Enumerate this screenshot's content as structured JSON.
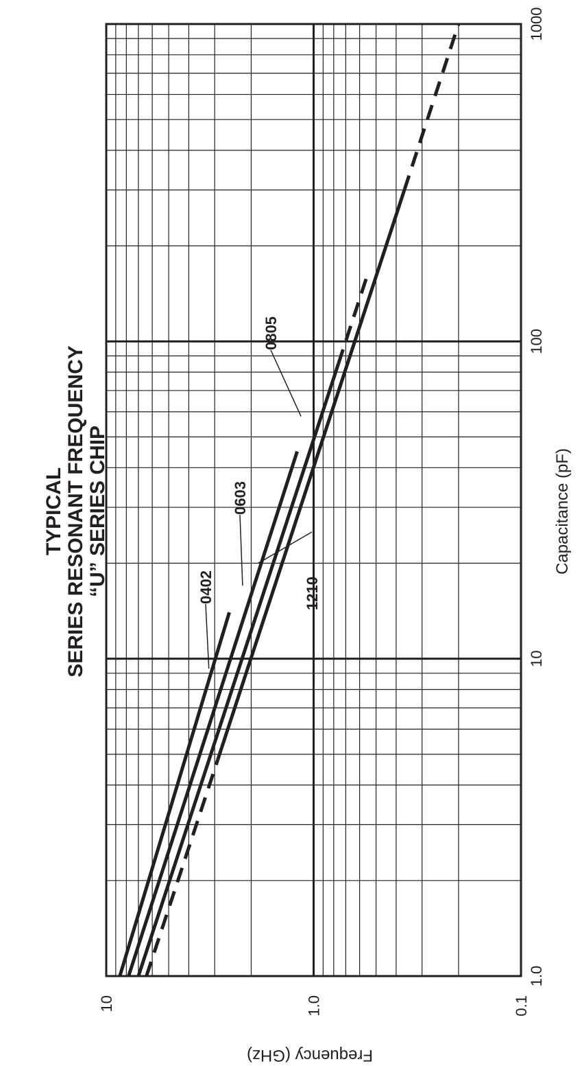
{
  "chart_data": {
    "type": "line",
    "title_lines": [
      "TYPICAL",
      "SERIES RESONANT FREQUENCY",
      "“U” SERIES CHIP"
    ],
    "xlabel": "Capacitance (pF)",
    "ylabel": "Frequency (GHz)",
    "x_scale": "log",
    "y_scale": "log",
    "xlim": [
      1,
      1000
    ],
    "ylim": [
      0.1,
      10
    ],
    "x_ticks": [
      "1.0",
      "10",
      "100",
      "1000"
    ],
    "y_ticks": [
      "10",
      "1.0",
      "0.1"
    ],
    "grid": true,
    "rotation": "chart printed rotated 90 degrees counter-clockwise",
    "series": [
      {
        "name": "0402",
        "solid": [
          [
            1.0,
            8.6
          ],
          [
            14.0,
            2.55
          ]
        ],
        "dashed": []
      },
      {
        "name": "0603",
        "solid": [
          [
            1.0,
            7.8
          ],
          [
            45.0,
            1.2
          ]
        ],
        "dashed": []
      },
      {
        "name": "0805",
        "solid": [
          [
            1.0,
            7.0
          ],
          [
            85.0,
            0.76
          ]
        ],
        "dashed": [
          [
            85.0,
            0.76
          ],
          [
            165.0,
            0.545
          ]
        ]
      },
      {
        "name": "1210",
        "solid": [
          [
            4.8,
            2.9
          ],
          [
            300.0,
            0.365
          ]
        ],
        "dashed": [
          [
            1.0,
            6.4
          ],
          [
            4.8,
            2.9
          ],
          [
            300.0,
            0.365
          ],
          [
            1000.0,
            0.2
          ]
        ]
      }
    ],
    "series_label_anchors": [
      {
        "name": "0402",
        "x": 9.3,
        "y": 3.2
      },
      {
        "name": "0603",
        "x": 17.0,
        "y": 2.2
      },
      {
        "name": "0805",
        "x": 58.0,
        "y": 1.15
      },
      {
        "name": "1210",
        "x": 20.0,
        "y": 1.85
      }
    ]
  }
}
